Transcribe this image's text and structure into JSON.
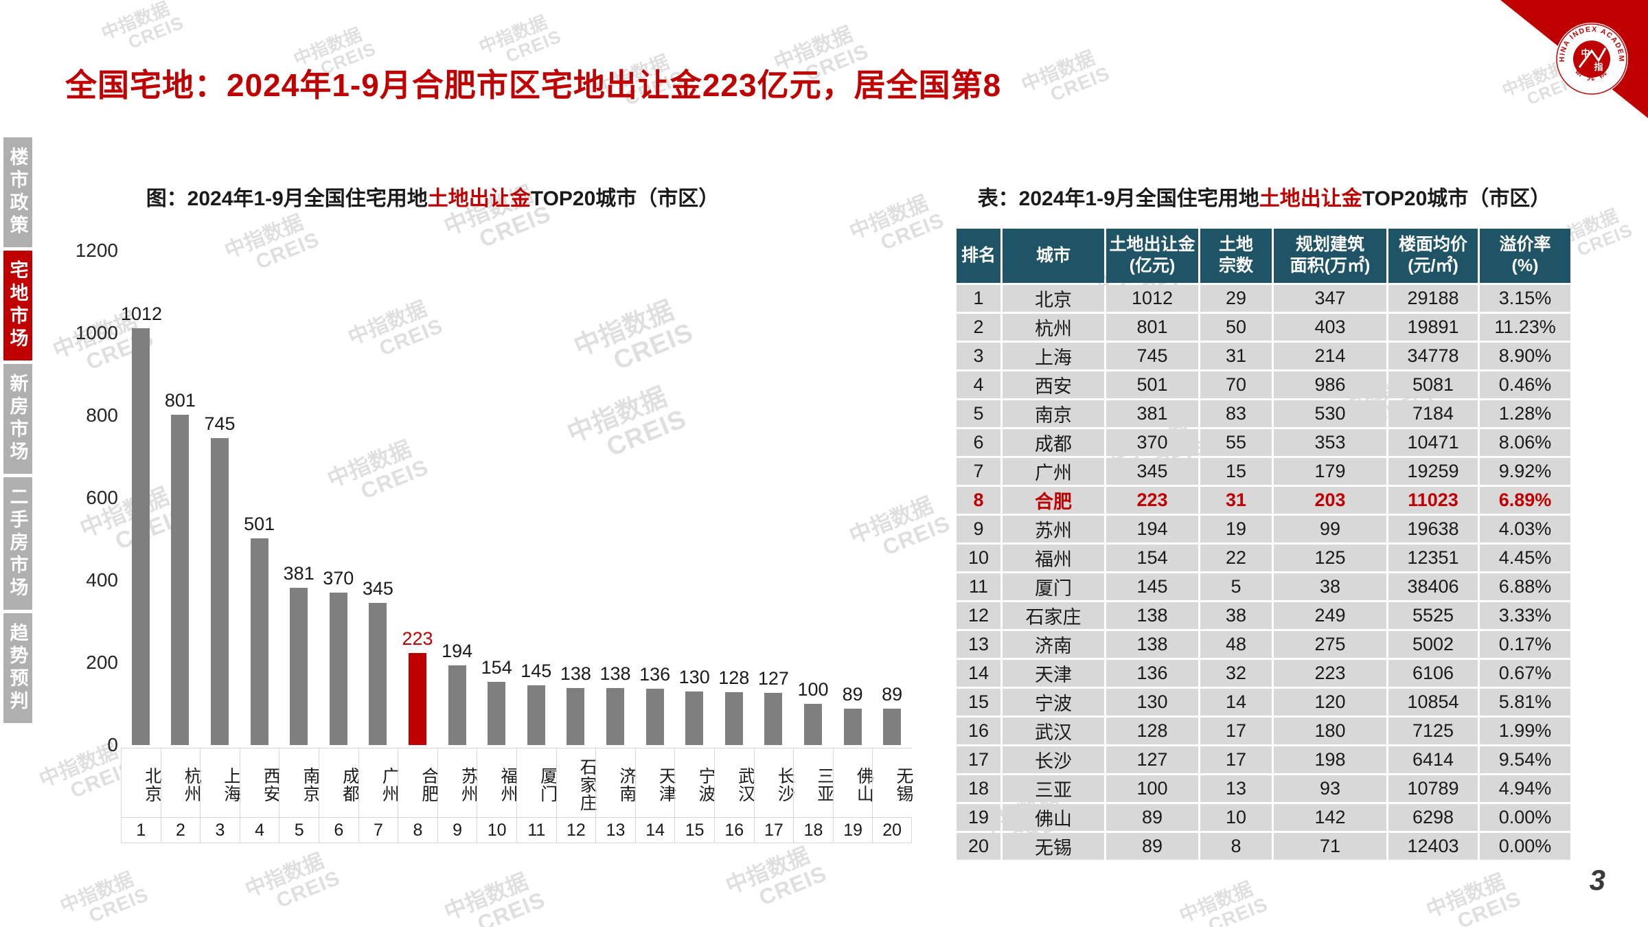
{
  "page": {
    "title": "全国宅地：2024年1-9月合肥市区宅地出让金223亿元，居全国第8",
    "page_number": "3"
  },
  "sidebar": {
    "items": [
      {
        "label": "楼市政策",
        "active": false
      },
      {
        "label": "宅地市场",
        "active": true
      },
      {
        "label": "新房市场",
        "active": false
      },
      {
        "label": "二手房市场",
        "active": false
      },
      {
        "label": "趋势预判",
        "active": false
      }
    ]
  },
  "chart": {
    "title": {
      "prefix": "图：2024年1-9月全国住宅用地",
      "highlight": "土地出让金",
      "suffix": "TOP20城市（市区）"
    }
  },
  "chart_data": {
    "type": "bar",
    "title": "图：2024年1-9月全国住宅用地土地出让金TOP20城市（市区）",
    "categories": [
      "北京",
      "杭州",
      "上海",
      "西安",
      "南京",
      "成都",
      "广州",
      "合肥",
      "苏州",
      "福州",
      "厦门",
      "石家庄",
      "济南",
      "天津",
      "宁波",
      "武汉",
      "长沙",
      "三亚",
      "佛山",
      "无锡"
    ],
    "ranks": [
      1,
      2,
      3,
      4,
      5,
      6,
      7,
      8,
      9,
      10,
      11,
      12,
      13,
      14,
      15,
      16,
      17,
      18,
      19,
      20
    ],
    "values": [
      1012,
      801,
      745,
      501,
      381,
      370,
      345,
      223,
      194,
      154,
      145,
      138,
      138,
      136,
      130,
      128,
      127,
      100,
      89,
      89
    ],
    "highlight_category": "合肥",
    "xlabel": "",
    "ylabel": "",
    "ylim": [
      0,
      1200
    ],
    "yticks": [
      0,
      200,
      400,
      600,
      800,
      1000,
      1200
    ],
    "grid": false,
    "legend": "none",
    "bar_color": "#7F7F7F",
    "highlight_color": "#C00000"
  },
  "table": {
    "title": {
      "prefix": "表：2024年1-9月全国住宅用地",
      "highlight": "土地出让金",
      "suffix": "TOP20城市（市区）"
    },
    "headers": [
      "排名",
      "城市",
      "土地出让金\n(亿元)",
      "土地\n宗数",
      "规划建筑\n面积(万㎡)",
      "楼面均价\n(元/㎡)",
      "溢价率\n(%)"
    ],
    "rows": [
      {
        "cells": [
          "1",
          "北京",
          "1012",
          "29",
          "347",
          "29188",
          "3.15%"
        ],
        "highlight": false
      },
      {
        "cells": [
          "2",
          "杭州",
          "801",
          "50",
          "403",
          "19891",
          "11.23%"
        ],
        "highlight": false
      },
      {
        "cells": [
          "3",
          "上海",
          "745",
          "31",
          "214",
          "34778",
          "8.90%"
        ],
        "highlight": false
      },
      {
        "cells": [
          "4",
          "西安",
          "501",
          "70",
          "986",
          "5081",
          "0.46%"
        ],
        "highlight": false
      },
      {
        "cells": [
          "5",
          "南京",
          "381",
          "83",
          "530",
          "7184",
          "1.28%"
        ],
        "highlight": false
      },
      {
        "cells": [
          "6",
          "成都",
          "370",
          "55",
          "353",
          "10471",
          "8.06%"
        ],
        "highlight": false
      },
      {
        "cells": [
          "7",
          "广州",
          "345",
          "15",
          "179",
          "19259",
          "9.92%"
        ],
        "highlight": false
      },
      {
        "cells": [
          "8",
          "合肥",
          "223",
          "31",
          "203",
          "11023",
          "6.89%"
        ],
        "highlight": true
      },
      {
        "cells": [
          "9",
          "苏州",
          "194",
          "19",
          "99",
          "19638",
          "4.03%"
        ],
        "highlight": false
      },
      {
        "cells": [
          "10",
          "福州",
          "154",
          "22",
          "125",
          "12351",
          "4.45%"
        ],
        "highlight": false
      },
      {
        "cells": [
          "11",
          "厦门",
          "145",
          "5",
          "38",
          "38406",
          "6.88%"
        ],
        "highlight": false
      },
      {
        "cells": [
          "12",
          "石家庄",
          "138",
          "38",
          "249",
          "5525",
          "3.33%"
        ],
        "highlight": false
      },
      {
        "cells": [
          "13",
          "济南",
          "138",
          "48",
          "275",
          "5002",
          "0.17%"
        ],
        "highlight": false
      },
      {
        "cells": [
          "14",
          "天津",
          "136",
          "32",
          "223",
          "6106",
          "0.67%"
        ],
        "highlight": false
      },
      {
        "cells": [
          "15",
          "宁波",
          "130",
          "14",
          "120",
          "10854",
          "5.81%"
        ],
        "highlight": false
      },
      {
        "cells": [
          "16",
          "武汉",
          "128",
          "17",
          "180",
          "7125",
          "1.99%"
        ],
        "highlight": false
      },
      {
        "cells": [
          "17",
          "长沙",
          "127",
          "17",
          "198",
          "6414",
          "9.54%"
        ],
        "highlight": false
      },
      {
        "cells": [
          "18",
          "三亚",
          "100",
          "13",
          "93",
          "10789",
          "4.94%"
        ],
        "highlight": false
      },
      {
        "cells": [
          "19",
          "佛山",
          "89",
          "10",
          "142",
          "6298",
          "0.00%"
        ],
        "highlight": false
      },
      {
        "cells": [
          "20",
          "无锡",
          "89",
          "8",
          "71",
          "12403",
          "0.00%"
        ],
        "highlight": false
      }
    ]
  },
  "watermark": {
    "line1": "中指数据",
    "line2": "CREIS"
  },
  "logo": {
    "ring_text": "CHINA INDEX ACADEMY",
    "center_text": "中指",
    "bottom_text": "研 究 院"
  }
}
